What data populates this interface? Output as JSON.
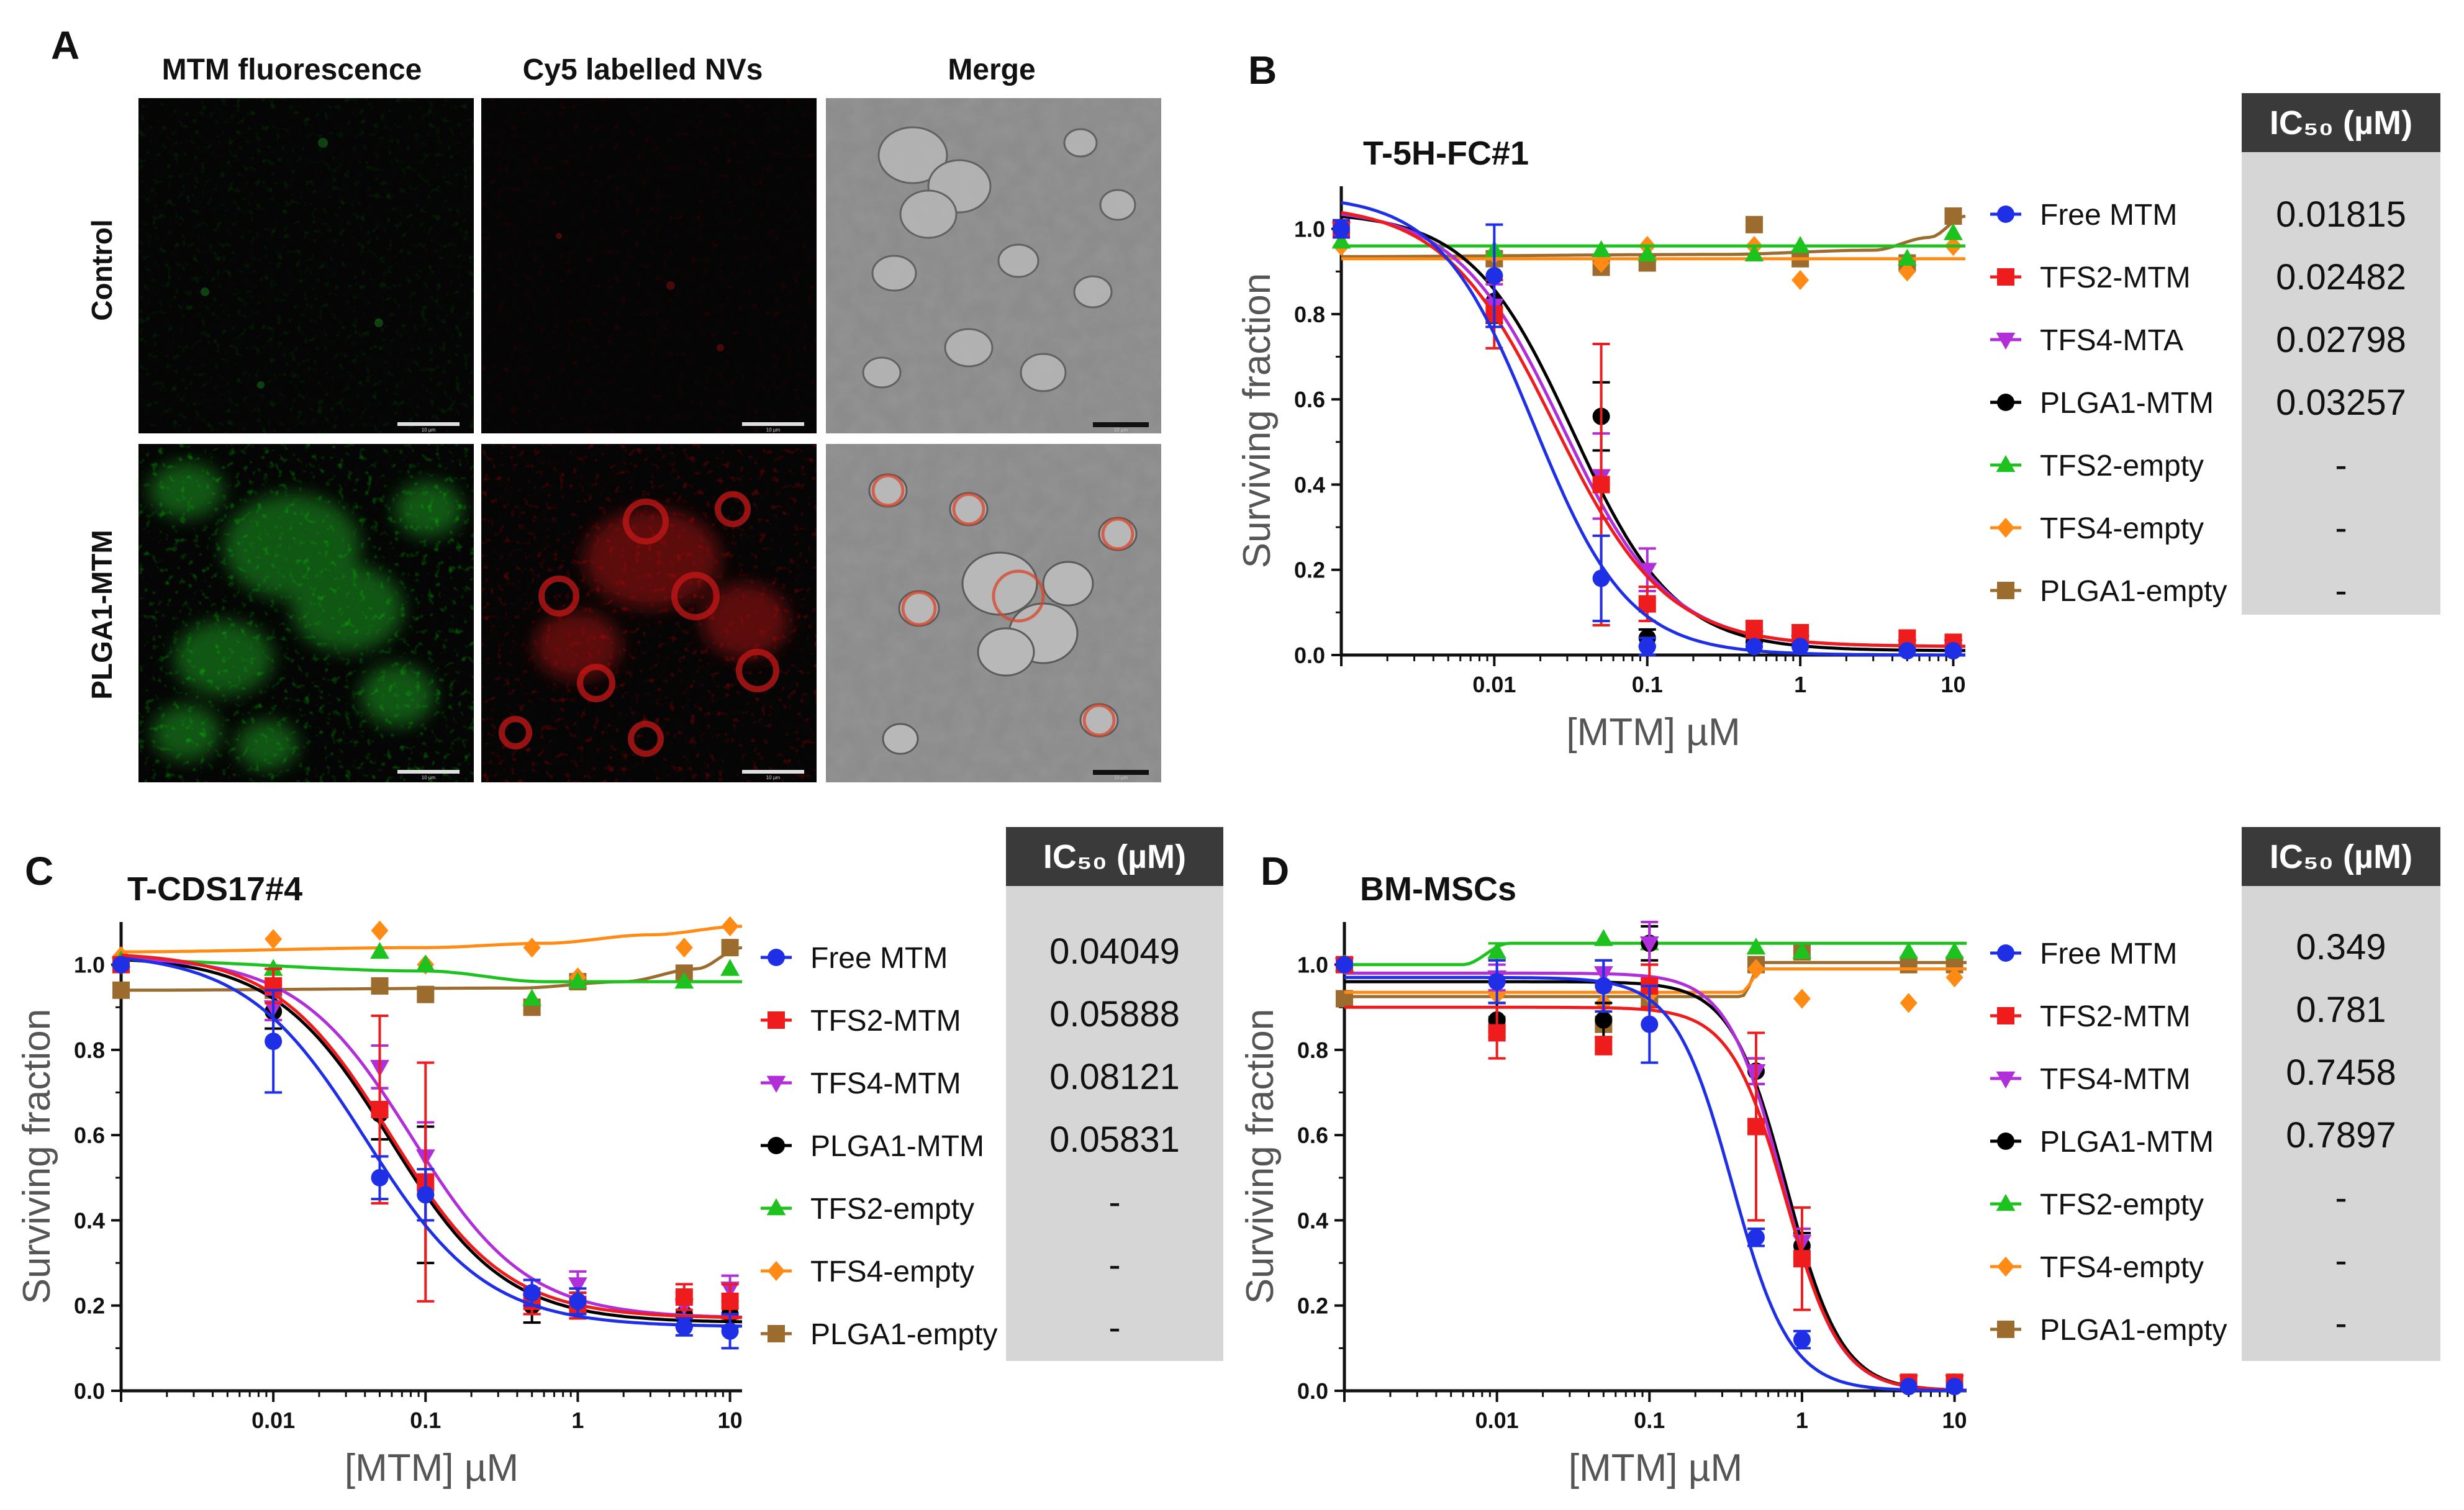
{
  "figure": {
    "panel_a": {
      "letter": "A",
      "columns": [
        "MTM fluorescence",
        "Cy5 labelled NVs",
        "Merge"
      ],
      "rows": [
        "Control",
        "PLGA1-MTM"
      ],
      "scale_bar_text": "10 µm"
    }
  },
  "colors": {
    "Free MTM": "#1f2fe6",
    "TFS2-MTM": "#ee1c1c",
    "TFS4-MTA": "#b12fd8",
    "TFS4-MTM": "#b12fd8",
    "PLGA1-MTM": "#000000",
    "TFS2-empty": "#1ec21e",
    "TFS4-empty": "#ff8a14",
    "PLGA1-empty": "#9c6b2e",
    "table_header": "#3a3a3a",
    "table_body": "#d6d6d6"
  },
  "chart_data": [
    {
      "panel": "B",
      "type": "scatter",
      "title": "T-5H-FC#1",
      "xlabel": "[MTM] µM",
      "ylabel": "Surviving fraction",
      "xscale": "log",
      "xlim": [
        0.001,
        12
      ],
      "ylim": [
        0,
        1.1
      ],
      "xticks": [
        "0.01",
        "0.1",
        "1",
        "10"
      ],
      "yticks": [
        "0.0",
        "0.2",
        "0.4",
        "0.6",
        "0.8",
        "1.0"
      ],
      "ic50_header": "IC₅₀ (µM)",
      "series": [
        {
          "name": "Free MTM",
          "marker": "circle",
          "x": [
            0.001,
            0.01,
            0.05,
            0.1,
            0.5,
            1,
            5,
            10
          ],
          "y": [
            1.0,
            0.89,
            0.18,
            0.02,
            0.02,
            0.02,
            0.01,
            0.01
          ],
          "err": [
            0.02,
            0.12,
            0.1,
            0.02,
            0.01,
            0.01,
            0.01,
            0.01
          ],
          "fit": {
            "top": 1.08,
            "bottom": 0.0,
            "ic50": 0.01815,
            "hill": 1.4
          },
          "ic50_text": "0.01815"
        },
        {
          "name": "TFS2-MTM",
          "marker": "square",
          "x": [
            0.001,
            0.01,
            0.05,
            0.1,
            0.5,
            1,
            5,
            10
          ],
          "y": [
            1.0,
            0.8,
            0.4,
            0.12,
            0.06,
            0.05,
            0.04,
            0.03
          ],
          "err": [
            0.02,
            0.08,
            0.33,
            0.04,
            0.02,
            0.02,
            0.01,
            0.01
          ],
          "fit": {
            "top": 1.06,
            "bottom": 0.02,
            "ic50": 0.02482,
            "hill": 1.2
          },
          "ic50_text": "0.02482"
        },
        {
          "name": "TFS4-MTA",
          "marker": "triangle-down",
          "x": [
            0.001,
            0.01,
            0.05,
            0.1,
            0.5,
            1,
            5,
            10
          ],
          "y": [
            1.0,
            0.82,
            0.42,
            0.2,
            0.04,
            0.03,
            0.02,
            0.02
          ],
          "err": [
            0.02,
            0.05,
            0.1,
            0.05,
            0.02,
            0.01,
            0.01,
            0.01
          ],
          "fit": {
            "top": 1.05,
            "bottom": 0.02,
            "ic50": 0.02798,
            "hill": 1.25
          },
          "ic50_text": "0.02798"
        },
        {
          "name": "PLGA1-MTM",
          "marker": "circle",
          "x": [
            0.001,
            0.01,
            0.05,
            0.1,
            0.5,
            1,
            5,
            10
          ],
          "y": [
            1.0,
            0.83,
            0.56,
            0.04,
            0.03,
            0.02,
            0.02,
            0.02
          ],
          "err": [
            0.02,
            0.05,
            0.08,
            0.02,
            0.01,
            0.01,
            0.01,
            0.01
          ],
          "fit": {
            "top": 1.04,
            "bottom": 0.01,
            "ic50": 0.03257,
            "hill": 1.3
          },
          "ic50_text": "0.03257"
        },
        {
          "name": "TFS2-empty",
          "marker": "triangle-up",
          "x": [
            0.001,
            0.01,
            0.05,
            0.1,
            0.5,
            1,
            5,
            10
          ],
          "y": [
            0.97,
            0.95,
            0.95,
            0.94,
            0.94,
            0.96,
            0.93,
            0.99
          ],
          "err": [
            0.01,
            0.01,
            0.01,
            0.01,
            0.01,
            0.01,
            0.01,
            0.01
          ],
          "fit": {
            "flat": 0.96
          },
          "ic50_text": "-"
        },
        {
          "name": "TFS4-empty",
          "marker": "diamond",
          "x": [
            0.001,
            0.01,
            0.05,
            0.1,
            0.5,
            1,
            5,
            10
          ],
          "y": [
            0.96,
            0.94,
            0.92,
            0.96,
            0.96,
            0.88,
            0.9,
            0.96
          ],
          "err": [
            0.01,
            0.01,
            0.01,
            0.01,
            0.01,
            0.01,
            0.01,
            0.01
          ],
          "fit": {
            "flat": 0.93
          },
          "ic50_text": "-"
        },
        {
          "name": "PLGA1-empty",
          "marker": "square",
          "x": [
            0.001,
            0.01,
            0.05,
            0.1,
            0.5,
            1,
            5,
            10
          ],
          "y": [
            1.0,
            0.93,
            0.91,
            0.92,
            1.01,
            0.93,
            0.92,
            1.03
          ],
          "err": [
            0.01,
            0.01,
            0.01,
            0.01,
            0.01,
            0.01,
            0.01,
            0.01
          ],
          "fit": {
            "curve": [
              [
                0.001,
                0.935
              ],
              [
                0.3,
                0.94
              ],
              [
                3,
                0.95
              ],
              [
                7,
                0.98
              ],
              [
                12,
                1.03
              ]
            ]
          },
          "ic50_text": "-"
        }
      ]
    },
    {
      "panel": "C",
      "type": "scatter",
      "title": "T-CDS17#4",
      "xlabel": "[MTM] µM",
      "ylabel": "Surviving fraction",
      "xscale": "log",
      "xlim": [
        0.001,
        12
      ],
      "ylim": [
        0,
        1.1
      ],
      "xticks": [
        "0.01",
        "0.1",
        "1",
        "10"
      ],
      "yticks": [
        "0.0",
        "0.2",
        "0.4",
        "0.6",
        "0.8",
        "1.0"
      ],
      "ic50_header": "IC₅₀ (µM)",
      "series": [
        {
          "name": "Free MTM",
          "marker": "circle",
          "x": [
            0.001,
            0.01,
            0.05,
            0.1,
            0.5,
            1,
            5,
            10
          ],
          "y": [
            1.0,
            0.82,
            0.5,
            0.46,
            0.23,
            0.21,
            0.15,
            0.14
          ],
          "err": [
            0.01,
            0.12,
            0.05,
            0.06,
            0.03,
            0.03,
            0.02,
            0.04
          ],
          "fit": {
            "top": 1.03,
            "bottom": 0.15,
            "ic50": 0.04049,
            "hill": 1.1
          },
          "ic50_text": "0.04049"
        },
        {
          "name": "TFS2-MTM",
          "marker": "square",
          "x": [
            0.001,
            0.01,
            0.05,
            0.1,
            0.5,
            1,
            5,
            10
          ],
          "y": [
            1.0,
            0.95,
            0.66,
            0.49,
            0.21,
            0.2,
            0.22,
            0.21
          ],
          "err": [
            0.01,
            0.04,
            0.22,
            0.28,
            0.03,
            0.03,
            0.03,
            0.04
          ],
          "fit": {
            "top": 1.03,
            "bottom": 0.17,
            "ic50": 0.05888,
            "hill": 1.15
          },
          "ic50_text": "0.05888"
        },
        {
          "name": "TFS4-MTM",
          "marker": "triangle-down",
          "x": [
            0.001,
            0.01,
            0.05,
            0.1,
            0.5,
            1,
            5,
            10
          ],
          "y": [
            1.0,
            0.9,
            0.76,
            0.55,
            0.21,
            0.25,
            0.2,
            0.24
          ],
          "err": [
            0.01,
            0.03,
            0.05,
            0.08,
            0.03,
            0.03,
            0.03,
            0.03
          ],
          "fit": {
            "top": 1.02,
            "bottom": 0.17,
            "ic50": 0.08121,
            "hill": 1.15
          },
          "ic50_text": "0.08121"
        },
        {
          "name": "PLGA1-MTM",
          "marker": "circle",
          "x": [
            0.001,
            0.01,
            0.05,
            0.1,
            0.5,
            1,
            5,
            10
          ],
          "y": [
            1.0,
            0.89,
            0.65,
            0.46,
            0.2,
            0.2,
            0.18,
            0.18
          ],
          "err": [
            0.01,
            0.04,
            0.06,
            0.16,
            0.04,
            0.03,
            0.03,
            0.03
          ],
          "fit": {
            "top": 1.02,
            "bottom": 0.16,
            "ic50": 0.05831,
            "hill": 1.15
          },
          "ic50_text": "0.05831"
        },
        {
          "name": "TFS2-empty",
          "marker": "triangle-up",
          "x": [
            0.001,
            0.01,
            0.05,
            0.1,
            0.5,
            1,
            5,
            10
          ],
          "y": [
            1.01,
            0.99,
            1.03,
            1.0,
            0.92,
            0.96,
            0.96,
            0.99
          ],
          "err": [
            0.01,
            0.01,
            0.01,
            0.01,
            0.01,
            0.01,
            0.01,
            0.01
          ],
          "fit": {
            "curve": [
              [
                0.001,
                1.01
              ],
              [
                0.1,
                0.985
              ],
              [
                0.6,
                0.96
              ],
              [
                12,
                0.96
              ]
            ]
          },
          "ic50_text": "-"
        },
        {
          "name": "TFS4-empty",
          "marker": "diamond",
          "x": [
            0.001,
            0.01,
            0.05,
            0.1,
            0.5,
            1,
            5,
            10
          ],
          "y": [
            1.02,
            1.06,
            1.08,
            1.0,
            1.04,
            0.97,
            1.04,
            1.09
          ],
          "err": [
            0.01,
            0.01,
            0.01,
            0.01,
            0.01,
            0.01,
            0.01,
            0.01
          ],
          "fit": {
            "curve": [
              [
                0.001,
                1.03
              ],
              [
                0.1,
                1.04
              ],
              [
                0.6,
                1.05
              ],
              [
                3,
                1.07
              ],
              [
                12,
                1.09
              ]
            ]
          },
          "ic50_text": "-"
        },
        {
          "name": "PLGA1-empty",
          "marker": "square",
          "x": [
            0.001,
            0.01,
            0.05,
            0.1,
            0.5,
            1,
            5,
            10
          ],
          "y": [
            0.94,
            0.94,
            0.95,
            0.93,
            0.9,
            0.96,
            0.98,
            1.04
          ],
          "err": [
            0.01,
            0.01,
            0.01,
            0.01,
            0.01,
            0.01,
            0.01,
            0.01
          ],
          "fit": {
            "curve": [
              [
                0.001,
                0.94
              ],
              [
                0.4,
                0.945
              ],
              [
                2,
                0.96
              ],
              [
                6,
                0.99
              ],
              [
                12,
                1.04
              ]
            ]
          },
          "ic50_text": "-"
        }
      ]
    },
    {
      "panel": "D",
      "type": "scatter",
      "title": "BM-MSCs",
      "xlabel": "[MTM] µM",
      "ylabel": "Surviving fraction",
      "xscale": "log",
      "xlim": [
        0.001,
        12
      ],
      "ylim": [
        0,
        1.1
      ],
      "xticks": [
        "0.01",
        "0.1",
        "1",
        "10"
      ],
      "yticks": [
        "0.0",
        "0.2",
        "0.4",
        "0.6",
        "0.8",
        "1.0"
      ],
      "ic50_header": "IC₅₀ (µM)",
      "series": [
        {
          "name": "Free MTM",
          "marker": "circle",
          "x": [
            0.001,
            0.01,
            0.05,
            0.1,
            0.5,
            1,
            5,
            10
          ],
          "y": [
            1.0,
            0.96,
            0.95,
            0.86,
            0.36,
            0.12,
            0.01,
            0.01
          ],
          "err": [
            0.01,
            0.05,
            0.06,
            0.09,
            0.02,
            0.02,
            0.01,
            0.01
          ],
          "fit": {
            "top": 0.97,
            "bottom": 0.0,
            "ic50": 0.349,
            "hill": 2.3
          },
          "ic50_text": "0.349"
        },
        {
          "name": "TFS2-MTM",
          "marker": "square",
          "x": [
            0.001,
            0.01,
            0.05,
            0.1,
            0.5,
            1,
            5,
            10
          ],
          "y": [
            1.0,
            0.84,
            0.81,
            0.95,
            0.62,
            0.31,
            0.02,
            0.02
          ],
          "err": [
            0.01,
            0.06,
            0.02,
            0.05,
            0.22,
            0.12,
            0.01,
            0.01
          ],
          "fit": {
            "top": 0.9,
            "bottom": 0.0,
            "ic50": 0.781,
            "hill": 2.4
          },
          "ic50_text": "0.781"
        },
        {
          "name": "TFS4-MTM",
          "marker": "triangle-down",
          "x": [
            0.001,
            0.01,
            0.05,
            0.1,
            0.5,
            1,
            5,
            10
          ],
          "y": [
            1.0,
            0.97,
            0.98,
            1.05,
            0.75,
            0.35,
            0.02,
            0.02
          ],
          "err": [
            0.01,
            0.03,
            0.03,
            0.05,
            0.03,
            0.03,
            0.01,
            0.01
          ],
          "fit": {
            "top": 0.98,
            "bottom": 0.0,
            "ic50": 0.7458,
            "hill": 2.4
          },
          "ic50_text": "0.7458"
        },
        {
          "name": "PLGA1-MTM",
          "marker": "circle",
          "x": [
            0.001,
            0.01,
            0.05,
            0.1,
            0.5,
            1,
            5,
            10
          ],
          "y": [
            1.0,
            0.87,
            0.87,
            1.05,
            0.75,
            0.34,
            0.02,
            0.02
          ],
          "err": [
            0.01,
            0.04,
            0.04,
            0.04,
            0.03,
            0.03,
            0.01,
            0.01
          ],
          "fit": {
            "top": 0.96,
            "bottom": 0.0,
            "ic50": 0.7897,
            "hill": 2.4
          },
          "ic50_text": "0.7897"
        },
        {
          "name": "TFS2-empty",
          "marker": "triangle-up",
          "x": [
            0.001,
            0.01,
            0.05,
            0.1,
            0.5,
            1,
            5,
            10
          ],
          "y": [
            1.0,
            1.03,
            1.06,
            1.05,
            1.04,
            1.03,
            1.03,
            1.03
          ],
          "err": [
            0.01,
            0.02,
            0.01,
            0.01,
            0.01,
            0.01,
            0.01,
            0.01
          ],
          "fit": {
            "curve": [
              [
                0.001,
                1.0
              ],
              [
                0.006,
                1.0
              ],
              [
                0.012,
                1.05
              ],
              [
                12,
                1.05
              ]
            ]
          },
          "ic50_text": "-"
        },
        {
          "name": "TFS4-empty",
          "marker": "diamond",
          "x": [
            0.001,
            0.01,
            0.05,
            0.1,
            0.5,
            1,
            5,
            10
          ],
          "y": [
            1.0,
            0.93,
            0.91,
            0.93,
            0.99,
            0.92,
            0.91,
            0.97
          ],
          "err": [
            0.01,
            0.01,
            0.01,
            0.01,
            0.01,
            0.01,
            0.01,
            0.01
          ],
          "fit": {
            "curve": [
              [
                0.001,
                0.935
              ],
              [
                0.4,
                0.935
              ],
              [
                0.55,
                0.99
              ],
              [
                12,
                0.99
              ]
            ]
          },
          "ic50_text": "-"
        },
        {
          "name": "PLGA1-empty",
          "marker": "square",
          "x": [
            0.001,
            0.01,
            0.05,
            0.1,
            0.5,
            1,
            5,
            10
          ],
          "y": [
            0.92,
            0.86,
            0.86,
            0.92,
            1.0,
            1.03,
            1.0,
            1.0
          ],
          "err": [
            0.01,
            0.01,
            0.01,
            0.01,
            0.01,
            0.01,
            0.01,
            0.01
          ],
          "fit": {
            "curve": [
              [
                0.001,
                0.925
              ],
              [
                0.4,
                0.925
              ],
              [
                0.55,
                1.005
              ],
              [
                12,
                1.005
              ]
            ]
          },
          "ic50_text": "-"
        }
      ]
    }
  ]
}
